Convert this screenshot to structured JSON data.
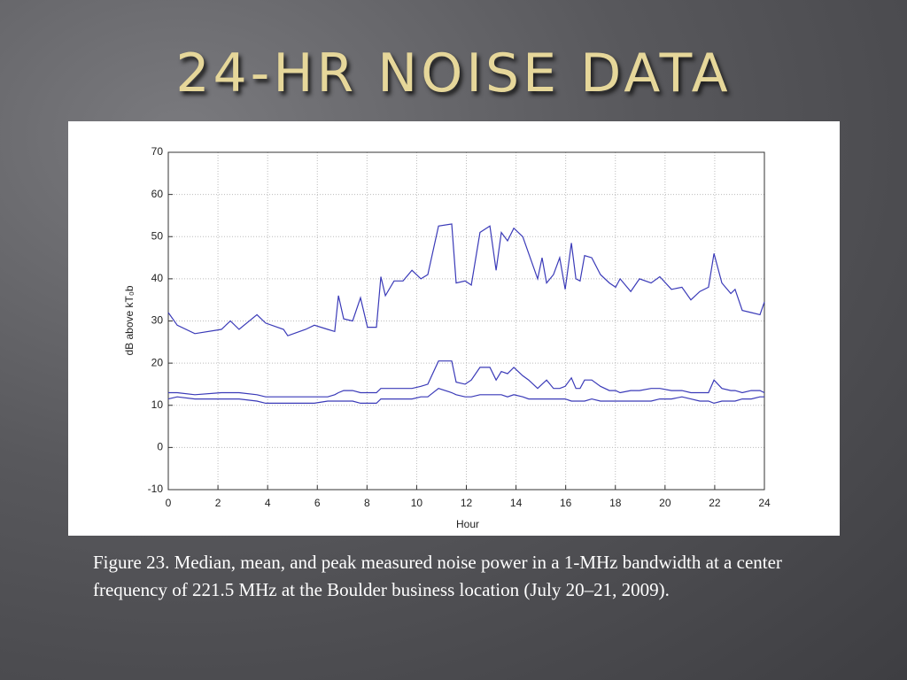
{
  "slide_title": "24-HR NOISE DATA",
  "caption": "Figure 23. Median, mean, and peak measured noise power in a 1-MHz bandwidth at a center frequency of 221.5 MHz at the Boulder business location (July 20–21, 2009).",
  "chart_data": {
    "type": "line",
    "xlabel": "Hour",
    "ylabel": "dB above kT₀b",
    "xlim": [
      0,
      24
    ],
    "xticks": [
      0,
      2,
      4,
      6,
      8,
      10,
      12,
      14,
      16,
      18,
      20,
      22,
      24
    ],
    "ylim": [
      -10,
      70
    ],
    "yticks": [
      -10,
      0,
      10,
      20,
      30,
      40,
      50,
      60,
      70
    ],
    "grid": true,
    "x": [
      0,
      0.36,
      1.07,
      2.14,
      2.5,
      2.85,
      3.57,
      3.92,
      4.64,
      4.81,
      5.53,
      5.88,
      6.42,
      6.7,
      6.85,
      7.06,
      7.42,
      7.74,
      8.02,
      8.38,
      8.56,
      8.74,
      9.09,
      9.45,
      9.81,
      10.17,
      10.45,
      10.88,
      11.41,
      11.59,
      11.95,
      12.2,
      12.55,
      12.95,
      13.2,
      13.41,
      13.66,
      13.91,
      14.27,
      14.51,
      14.87,
      15.05,
      15.23,
      15.51,
      15.76,
      15.98,
      16.23,
      16.41,
      16.58,
      16.76,
      17.05,
      17.4,
      17.76,
      18.01,
      18.19,
      18.62,
      18.97,
      19.44,
      19.79,
      20.26,
      20.68,
      21.04,
      21.4,
      21.75,
      21.97,
      22.29,
      22.65,
      22.82,
      23.11,
      23.47,
      23.82,
      24
    ],
    "series": [
      {
        "color": "#3a3ab8",
        "values": [
          32,
          29,
          27,
          28,
          30,
          28,
          31.5,
          29.5,
          28,
          26.5,
          28,
          29,
          28,
          27.5,
          36,
          30.5,
          30,
          35.5,
          28.5,
          28.5,
          40.5,
          36,
          39.5,
          39.5,
          42,
          40,
          41,
          52.5,
          53,
          39,
          39.5,
          38.5,
          51,
          52.5,
          42,
          51,
          49,
          52,
          50,
          46,
          40,
          45,
          39,
          41,
          45,
          37.5,
          48.5,
          40,
          39.5,
          45.5,
          45,
          41,
          39,
          38,
          40,
          37,
          40,
          39,
          40.5,
          37.5,
          38,
          35,
          37,
          38,
          46,
          39,
          36.5,
          37.5,
          32.5,
          32,
          31.5,
          34.5
        ]
      },
      {
        "color": "#3a3ab8",
        "values": [
          13,
          13,
          12.5,
          13,
          13,
          13,
          12.5,
          12,
          12,
          12,
          12,
          12,
          12,
          12.5,
          13,
          13.5,
          13.5,
          13,
          13,
          13,
          14,
          14,
          14,
          14,
          14,
          14.5,
          15,
          20.5,
          20.5,
          15.5,
          15,
          16,
          19,
          19,
          16,
          18,
          17.5,
          19,
          17,
          16,
          14,
          15,
          16,
          14,
          14,
          14.5,
          16.5,
          14,
          14,
          16,
          16,
          14.5,
          13.5,
          13.5,
          13,
          13.5,
          13.5,
          14,
          14,
          13.5,
          13.5,
          13,
          13,
          13,
          16,
          14,
          13.5,
          13.5,
          13,
          13.5,
          13.5,
          13
        ]
      },
      {
        "color": "#3a3ab8",
        "values": [
          11.5,
          12,
          11.5,
          11.5,
          11.5,
          11.5,
          11,
          10.5,
          10.5,
          10.5,
          10.5,
          10.5,
          11,
          11,
          11,
          11,
          11,
          10.5,
          10.5,
          10.5,
          11.5,
          11.5,
          11.5,
          11.5,
          11.5,
          12,
          12,
          14,
          13,
          12.5,
          12,
          12,
          12.5,
          12.5,
          12.5,
          12.5,
          12,
          12.5,
          12,
          11.5,
          11.5,
          11.5,
          11.5,
          11.5,
          11.5,
          11.5,
          11,
          11,
          11,
          11,
          11.5,
          11,
          11,
          11,
          11,
          11,
          11,
          11,
          11.5,
          11.5,
          12,
          11.5,
          11,
          11,
          10.5,
          11,
          11,
          11,
          11.5,
          11.5,
          12,
          12
        ]
      }
    ]
  }
}
